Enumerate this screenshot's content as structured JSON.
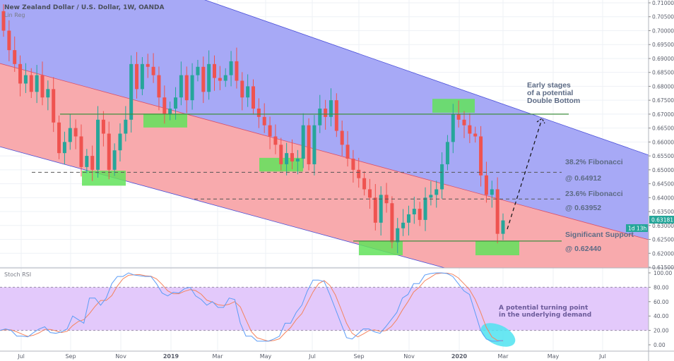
{
  "header": {
    "title": "New Zealand Dollar / U.S. Dollar, 1W, OANDA",
    "indicator": "Lin Reg"
  },
  "rsi_pane": {
    "title": "Stoch RSI"
  },
  "price_label": {
    "value": "0.63181",
    "countdown": "1d 13h"
  },
  "colors": {
    "up": "#26a69a",
    "down": "#ef5350",
    "channel_upper_fill": "#a7a9f6",
    "channel_lower_fill": "#f8aaad",
    "zone": "#62e35a",
    "rsi_k": "#5b9cf6",
    "rsi_d": "#f4845f",
    "rsi_band": "#e3c9fb",
    "highlight": "#4fe3f0"
  },
  "annotations": {
    "double_bottom": [
      "Early stages",
      "of a potential",
      "Double Bottom"
    ],
    "fib382": [
      "38.2% Fibonacci",
      "@ 0.64912"
    ],
    "fib236": [
      "23.6% Fibonacci",
      "@ 0.63952"
    ],
    "support": [
      "Significant Support",
      "@ 0.62440"
    ],
    "rsi_note": [
      "A potential turning point",
      "in the underlying demand"
    ]
  },
  "chart_data": [
    {
      "type": "candlestick",
      "title": "New Zealand Dollar / U.S. Dollar, 1W, OANDA",
      "ylim": [
        0.615,
        0.71
      ],
      "y_ticks": [
        "0.71000",
        "0.70500",
        "0.70000",
        "0.69500",
        "0.69000",
        "0.68500",
        "0.68000",
        "0.67500",
        "0.67000",
        "0.66500",
        "0.66000",
        "0.65500",
        "0.65000",
        "0.64500",
        "0.64000",
        "0.63500",
        "0.63000",
        "0.62500",
        "0.62000",
        "0.61500"
      ],
      "x_ticks": [
        "Jul",
        "Sep",
        "Nov",
        "2019",
        "Mar",
        "May",
        "Jul",
        "Sep",
        "Nov",
        "2020",
        "Mar",
        "May",
        "Jul"
      ],
      "weekly_close": [
        0.7,
        0.693,
        0.688,
        0.681,
        0.684,
        0.678,
        0.684,
        0.676,
        0.679,
        0.667,
        0.656,
        0.66,
        0.665,
        0.662,
        0.651,
        0.655,
        0.65,
        0.668,
        0.663,
        0.65,
        0.657,
        0.663,
        0.668,
        0.688,
        0.679,
        0.688,
        0.687,
        0.684,
        0.676,
        0.67,
        0.672,
        0.676,
        0.684,
        0.675,
        0.684,
        0.687,
        0.678,
        0.688,
        0.683,
        0.682,
        0.684,
        0.689,
        0.682,
        0.676,
        0.68,
        0.672,
        0.669,
        0.666,
        0.662,
        0.659,
        0.652,
        0.656,
        0.653,
        0.654,
        0.666,
        0.652,
        0.666,
        0.672,
        0.669,
        0.675,
        0.664,
        0.659,
        0.654,
        0.65,
        0.647,
        0.643,
        0.64,
        0.631,
        0.641,
        0.638,
        0.624,
        0.629,
        0.631,
        0.634,
        0.636,
        0.632,
        0.64,
        0.641,
        0.643,
        0.652,
        0.66,
        0.67,
        0.668,
        0.666,
        0.663,
        0.662,
        0.648,
        0.641,
        0.643,
        0.627,
        0.63181
      ],
      "first_open": 0.707,
      "lin_reg_channel": {
        "upper": [
          0.7368,
          0.6553
        ],
        "middle": [
          0.6882,
          0.6249
        ],
        "lower": [
          0.6583,
          0.5948
        ]
      },
      "levels": {
        "resistance": 0.67,
        "fib_382": 0.64912,
        "fib_236": 0.63952,
        "support": 0.6244
      },
      "zones": [
        [
          0.6497,
          0.6443
        ],
        [
          0.6702,
          0.6652
        ],
        [
          0.6543,
          0.6494
        ],
        [
          0.6755,
          0.6705
        ],
        [
          0.6244,
          0.6193
        ],
        [
          0.6244,
          0.6193
        ]
      ],
      "last_price": 0.63181
    },
    {
      "type": "line",
      "title": "Stoch RSI",
      "ylim": [
        0,
        100
      ],
      "y_ticks": [
        "100.00",
        "80.00",
        "60.00",
        "40.00",
        "20.00",
        "0.00"
      ],
      "band": [
        20,
        80
      ],
      "series": [
        {
          "values": [
            20,
            22,
            20,
            12,
            12,
            11,
            17,
            22,
            25,
            17,
            16,
            18,
            22,
            40,
            35,
            30,
            65,
            65,
            55,
            65,
            85,
            95,
            95,
            100,
            97,
            96,
            95,
            95,
            85,
            72,
            68,
            73,
            72,
            78,
            80,
            68,
            63,
            55,
            60,
            52,
            52,
            65,
            63,
            30,
            12,
            12,
            5,
            5,
            5,
            8,
            12,
            30,
            30,
            45,
            55,
            75,
            90,
            90,
            88,
            70,
            50,
            30,
            10,
            8,
            15,
            22,
            22,
            18,
            16,
            25,
            35,
            45,
            65,
            70,
            85,
            85,
            97,
            99,
            100,
            100,
            99,
            95,
            85,
            75,
            70,
            45,
            20,
            8,
            5,
            5,
            6
          ]
        }
      ]
    }
  ]
}
